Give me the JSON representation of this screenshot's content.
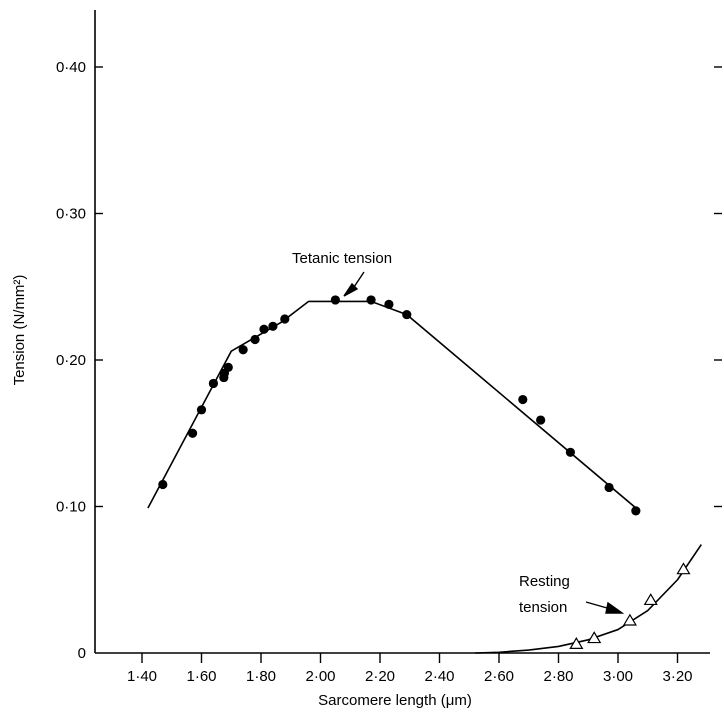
{
  "chart_data": {
    "type": "line",
    "xlabel": "Sarcomere length (μm)",
    "ylabel": "Tension (N/mm²)",
    "xlim": [
      1.4,
      3.3
    ],
    "ylim": [
      0,
      0.4
    ],
    "x_ticks": [
      "1·40",
      "1·60",
      "1·80",
      "2·00",
      "2·20",
      "2·40",
      "2·60",
      "2·80",
      "3·00",
      "3·20"
    ],
    "y_ticks": [
      "0",
      "0·10",
      "0·20",
      "0·30",
      "0·40"
    ],
    "annotations": {
      "tetanic": "Tetanic tension",
      "resting_line1": "Resting",
      "resting_line2": "tension"
    },
    "series": [
      {
        "name": "Tetanic tension",
        "marker": "filled-circle",
        "points": [
          [
            1.47,
            0.115
          ],
          [
            1.57,
            0.15
          ],
          [
            1.6,
            0.166
          ],
          [
            1.64,
            0.184
          ],
          [
            1.675,
            0.188
          ],
          [
            1.677,
            0.191
          ],
          [
            1.69,
            0.195
          ],
          [
            1.74,
            0.207
          ],
          [
            1.78,
            0.214
          ],
          [
            1.81,
            0.221
          ],
          [
            1.84,
            0.223
          ],
          [
            1.88,
            0.228
          ],
          [
            2.05,
            0.241
          ],
          [
            2.17,
            0.241
          ],
          [
            2.23,
            0.238
          ],
          [
            2.29,
            0.231
          ],
          [
            2.68,
            0.173
          ],
          [
            2.74,
            0.159
          ],
          [
            2.84,
            0.137
          ],
          [
            2.97,
            0.113
          ],
          [
            3.06,
            0.097
          ]
        ],
        "fit_line": [
          [
            1.42,
            0.099
          ],
          [
            1.7,
            0.206
          ],
          [
            1.87,
            0.226
          ],
          [
            1.96,
            0.24
          ],
          [
            2.17,
            0.24
          ],
          [
            2.29,
            0.231
          ],
          [
            3.06,
            0.099
          ]
        ]
      },
      {
        "name": "Resting tension",
        "marker": "open-triangle",
        "points": [
          [
            2.86,
            0.006
          ],
          [
            2.92,
            0.01
          ],
          [
            3.04,
            0.022
          ],
          [
            3.11,
            0.036
          ],
          [
            3.22,
            0.057
          ]
        ],
        "fit_curve": [
          [
            2.52,
            0.0
          ],
          [
            2.6,
            0.0005
          ],
          [
            2.7,
            0.002
          ],
          [
            2.8,
            0.0045
          ],
          [
            2.9,
            0.009
          ],
          [
            3.0,
            0.016
          ],
          [
            3.1,
            0.029
          ],
          [
            3.2,
            0.05
          ],
          [
            3.28,
            0.074
          ]
        ]
      }
    ]
  }
}
